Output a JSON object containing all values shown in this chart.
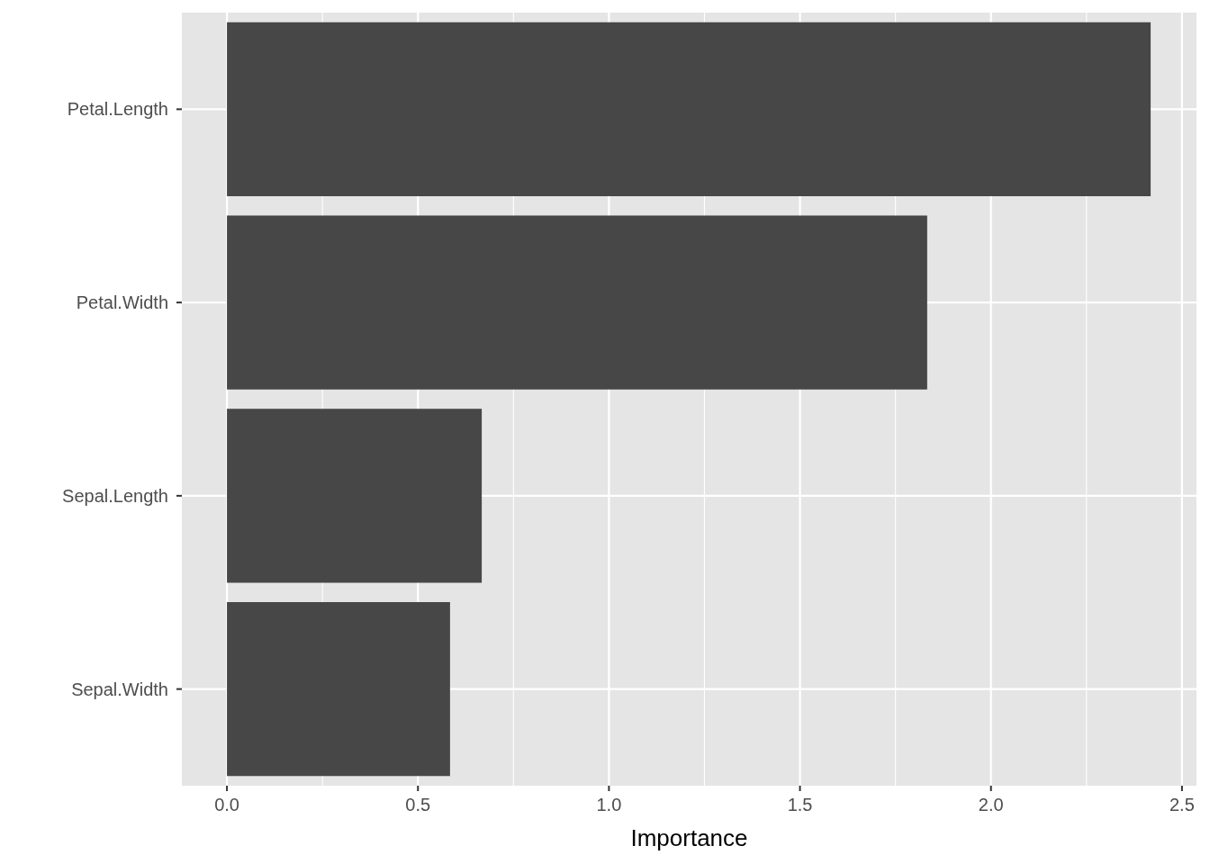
{
  "chart_data": {
    "type": "bar",
    "orientation": "horizontal",
    "xlabel": "Importance",
    "categories": [
      "Petal.Length",
      "Petal.Width",
      "Sepal.Length",
      "Sepal.Width"
    ],
    "values": [
      2.418,
      1.833,
      0.667,
      0.584
    ],
    "color": "#474747",
    "xlim": [
      -0.118,
      2.538
    ],
    "xticks": [
      {
        "value": 0,
        "label": "0.0"
      },
      {
        "value": 0.5,
        "label": "0.5"
      },
      {
        "value": 1,
        "label": "1.0"
      },
      {
        "value": 1.5,
        "label": "1.5"
      },
      {
        "value": 2,
        "label": "2.0"
      },
      {
        "value": 2.5,
        "label": "2.5"
      }
    ],
    "grid": true
  }
}
